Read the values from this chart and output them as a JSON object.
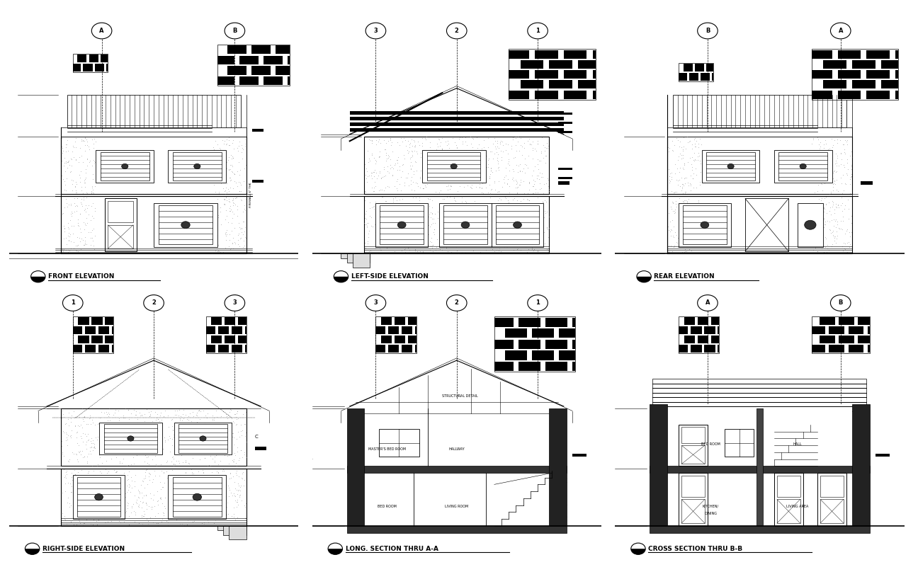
{
  "bg_color": "#ffffff",
  "line_color": "#000000",
  "panels": [
    {
      "label": "FRONT ELEVATION",
      "col": 0,
      "row": 0,
      "ref_left": "A",
      "ref_right": "B"
    },
    {
      "label": "LEFT-SIDE ELEVATION",
      "col": 1,
      "row": 0,
      "ref_left": "3",
      "ref_mid": "2",
      "ref_right": "1"
    },
    {
      "label": "REAR ELEVATION",
      "col": 2,
      "row": 0,
      "ref_left": "B",
      "ref_right": "A"
    },
    {
      "label": "RIGHT-SIDE ELEVATION",
      "col": 0,
      "row": 1,
      "ref_left": "1",
      "ref_mid": "2",
      "ref_right": "3"
    },
    {
      "label": "LONG. SECTION THRU A-A",
      "col": 1,
      "row": 1,
      "ref_left": "3",
      "ref_mid": "2",
      "ref_right": "1"
    },
    {
      "label": "CROSS SECTION THRU B-B",
      "col": 2,
      "row": 1,
      "ref_left": "A",
      "ref_right": "B"
    }
  ]
}
